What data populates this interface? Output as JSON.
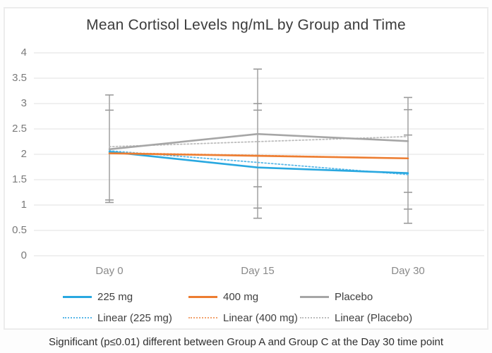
{
  "chart_data": {
    "type": "line",
    "title": "Mean Cortisol Levels ng/mL by Group and Time",
    "categories": [
      "Day 0",
      "Day 15",
      "Day 30"
    ],
    "series": [
      {
        "name": "225 mg",
        "style": "solid",
        "color": "#29a8e0",
        "values": [
          2.05,
          1.74,
          1.63
        ]
      },
      {
        "name": "400 mg",
        "style": "solid",
        "color": "#ed7d31",
        "values": [
          2.02,
          1.97,
          1.92
        ]
      },
      {
        "name": "Placebo",
        "style": "solid",
        "color": "#a6a6a6",
        "values": [
          2.1,
          2.4,
          2.26
        ]
      },
      {
        "name": "Linear (225 mg)",
        "style": "dotted",
        "color": "#5bb8e8",
        "values": [
          2.07,
          1.84,
          1.6
        ]
      },
      {
        "name": "Linear (400 mg)",
        "style": "dotted",
        "color": "#f2a36e",
        "values": [
          2.03,
          1.98,
          1.92
        ]
      },
      {
        "name": "Linear (Placebo)",
        "style": "dotted",
        "color": "#bdbdbd",
        "values": [
          2.15,
          2.25,
          2.35
        ]
      }
    ],
    "error_bars": {
      "color": "#9b9b9b",
      "points": [
        {
          "category": "Day 0",
          "low": 1.05,
          "high": 3.17,
          "caps": [
            1.05,
            1.1,
            2.87,
            3.17
          ]
        },
        {
          "category": "Day 15",
          "low": 0.74,
          "high": 3.68,
          "caps": [
            0.74,
            0.94,
            1.36,
            2.87,
            3.0,
            3.68
          ]
        },
        {
          "category": "Day 30",
          "low": 0.64,
          "high": 3.12,
          "caps": [
            0.64,
            0.92,
            1.25,
            2.38,
            2.88,
            3.12
          ]
        }
      ]
    },
    "y_axis": {
      "min": 0,
      "max": 4,
      "step": 0.5,
      "tick_labels": [
        "0",
        "0.5",
        "1",
        "1.5",
        "2",
        "2.5",
        "3",
        "3.5",
        "4"
      ]
    },
    "xlabel": "",
    "ylabel": "",
    "grid": true,
    "gridline_color": "#e7e7e7",
    "legend_position": "bottom"
  },
  "caption": "Significant (p≤0.01) different between Group A and Group C at the Day 30 time point"
}
